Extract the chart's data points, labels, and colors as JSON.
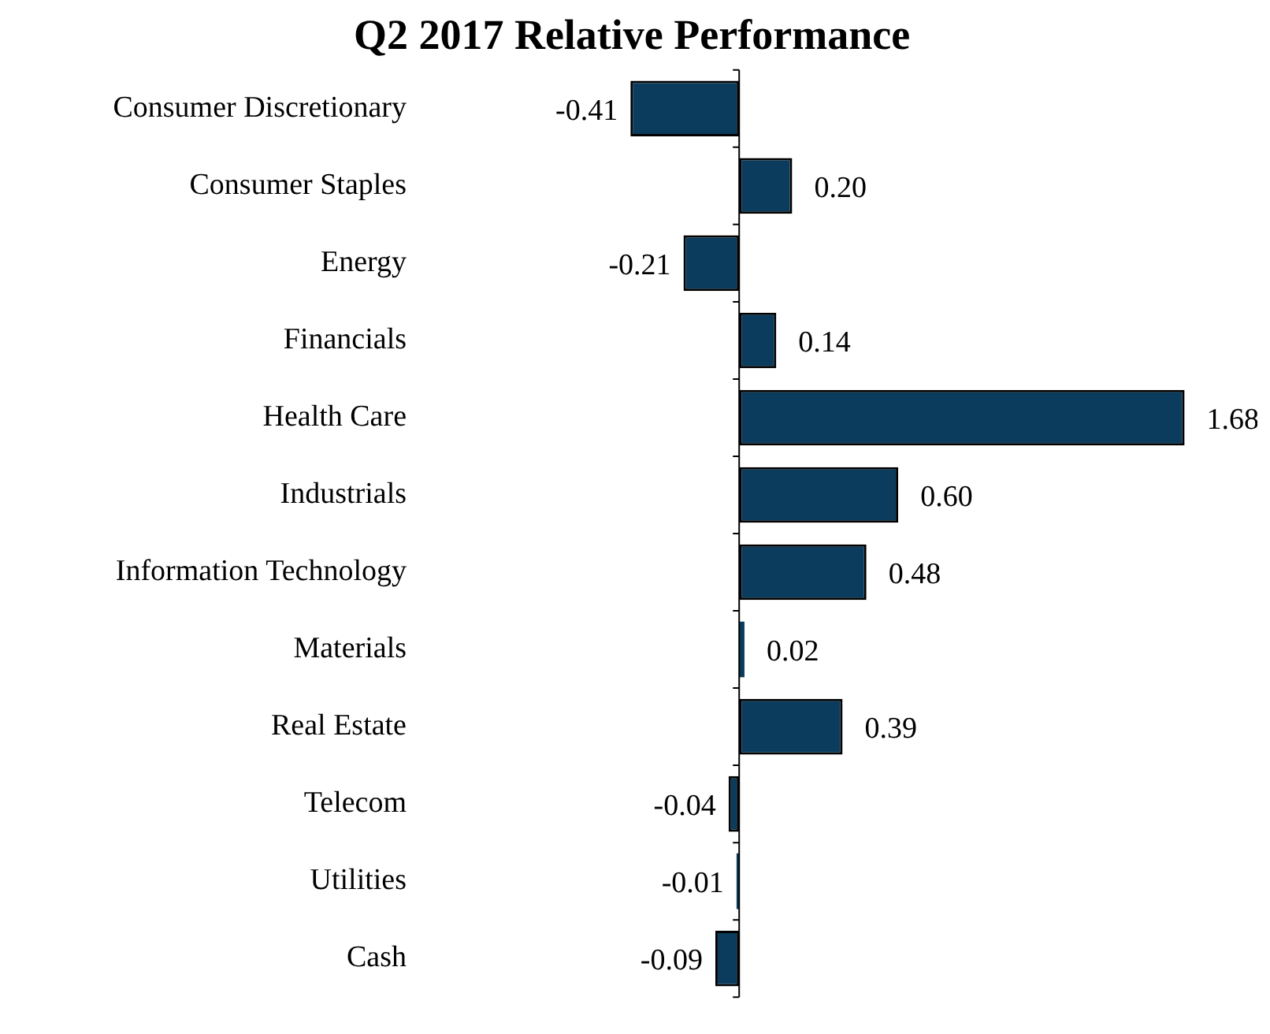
{
  "chart_data": {
    "type": "bar",
    "orientation": "horizontal",
    "title": "Q2 2017 Relative Performance",
    "categories": [
      "Consumer Discretionary",
      "Consumer Staples",
      "Energy",
      "Financials",
      "Health Care",
      "Industrials",
      "Information Technology",
      "Materials",
      "Real Estate",
      "Telecom",
      "Utilities",
      "Cash"
    ],
    "values": [
      -0.41,
      0.2,
      -0.21,
      0.14,
      1.68,
      0.6,
      0.48,
      0.02,
      0.39,
      -0.04,
      -0.01,
      -0.09
    ],
    "value_labels": [
      "-0.41",
      "0.20",
      "-0.21",
      "0.14",
      "1.68",
      "0.60",
      "0.48",
      "0.02",
      "0.39",
      "-0.04",
      "-0.01",
      "-0.09"
    ],
    "color": "#0b3c5d",
    "legend": false
  }
}
